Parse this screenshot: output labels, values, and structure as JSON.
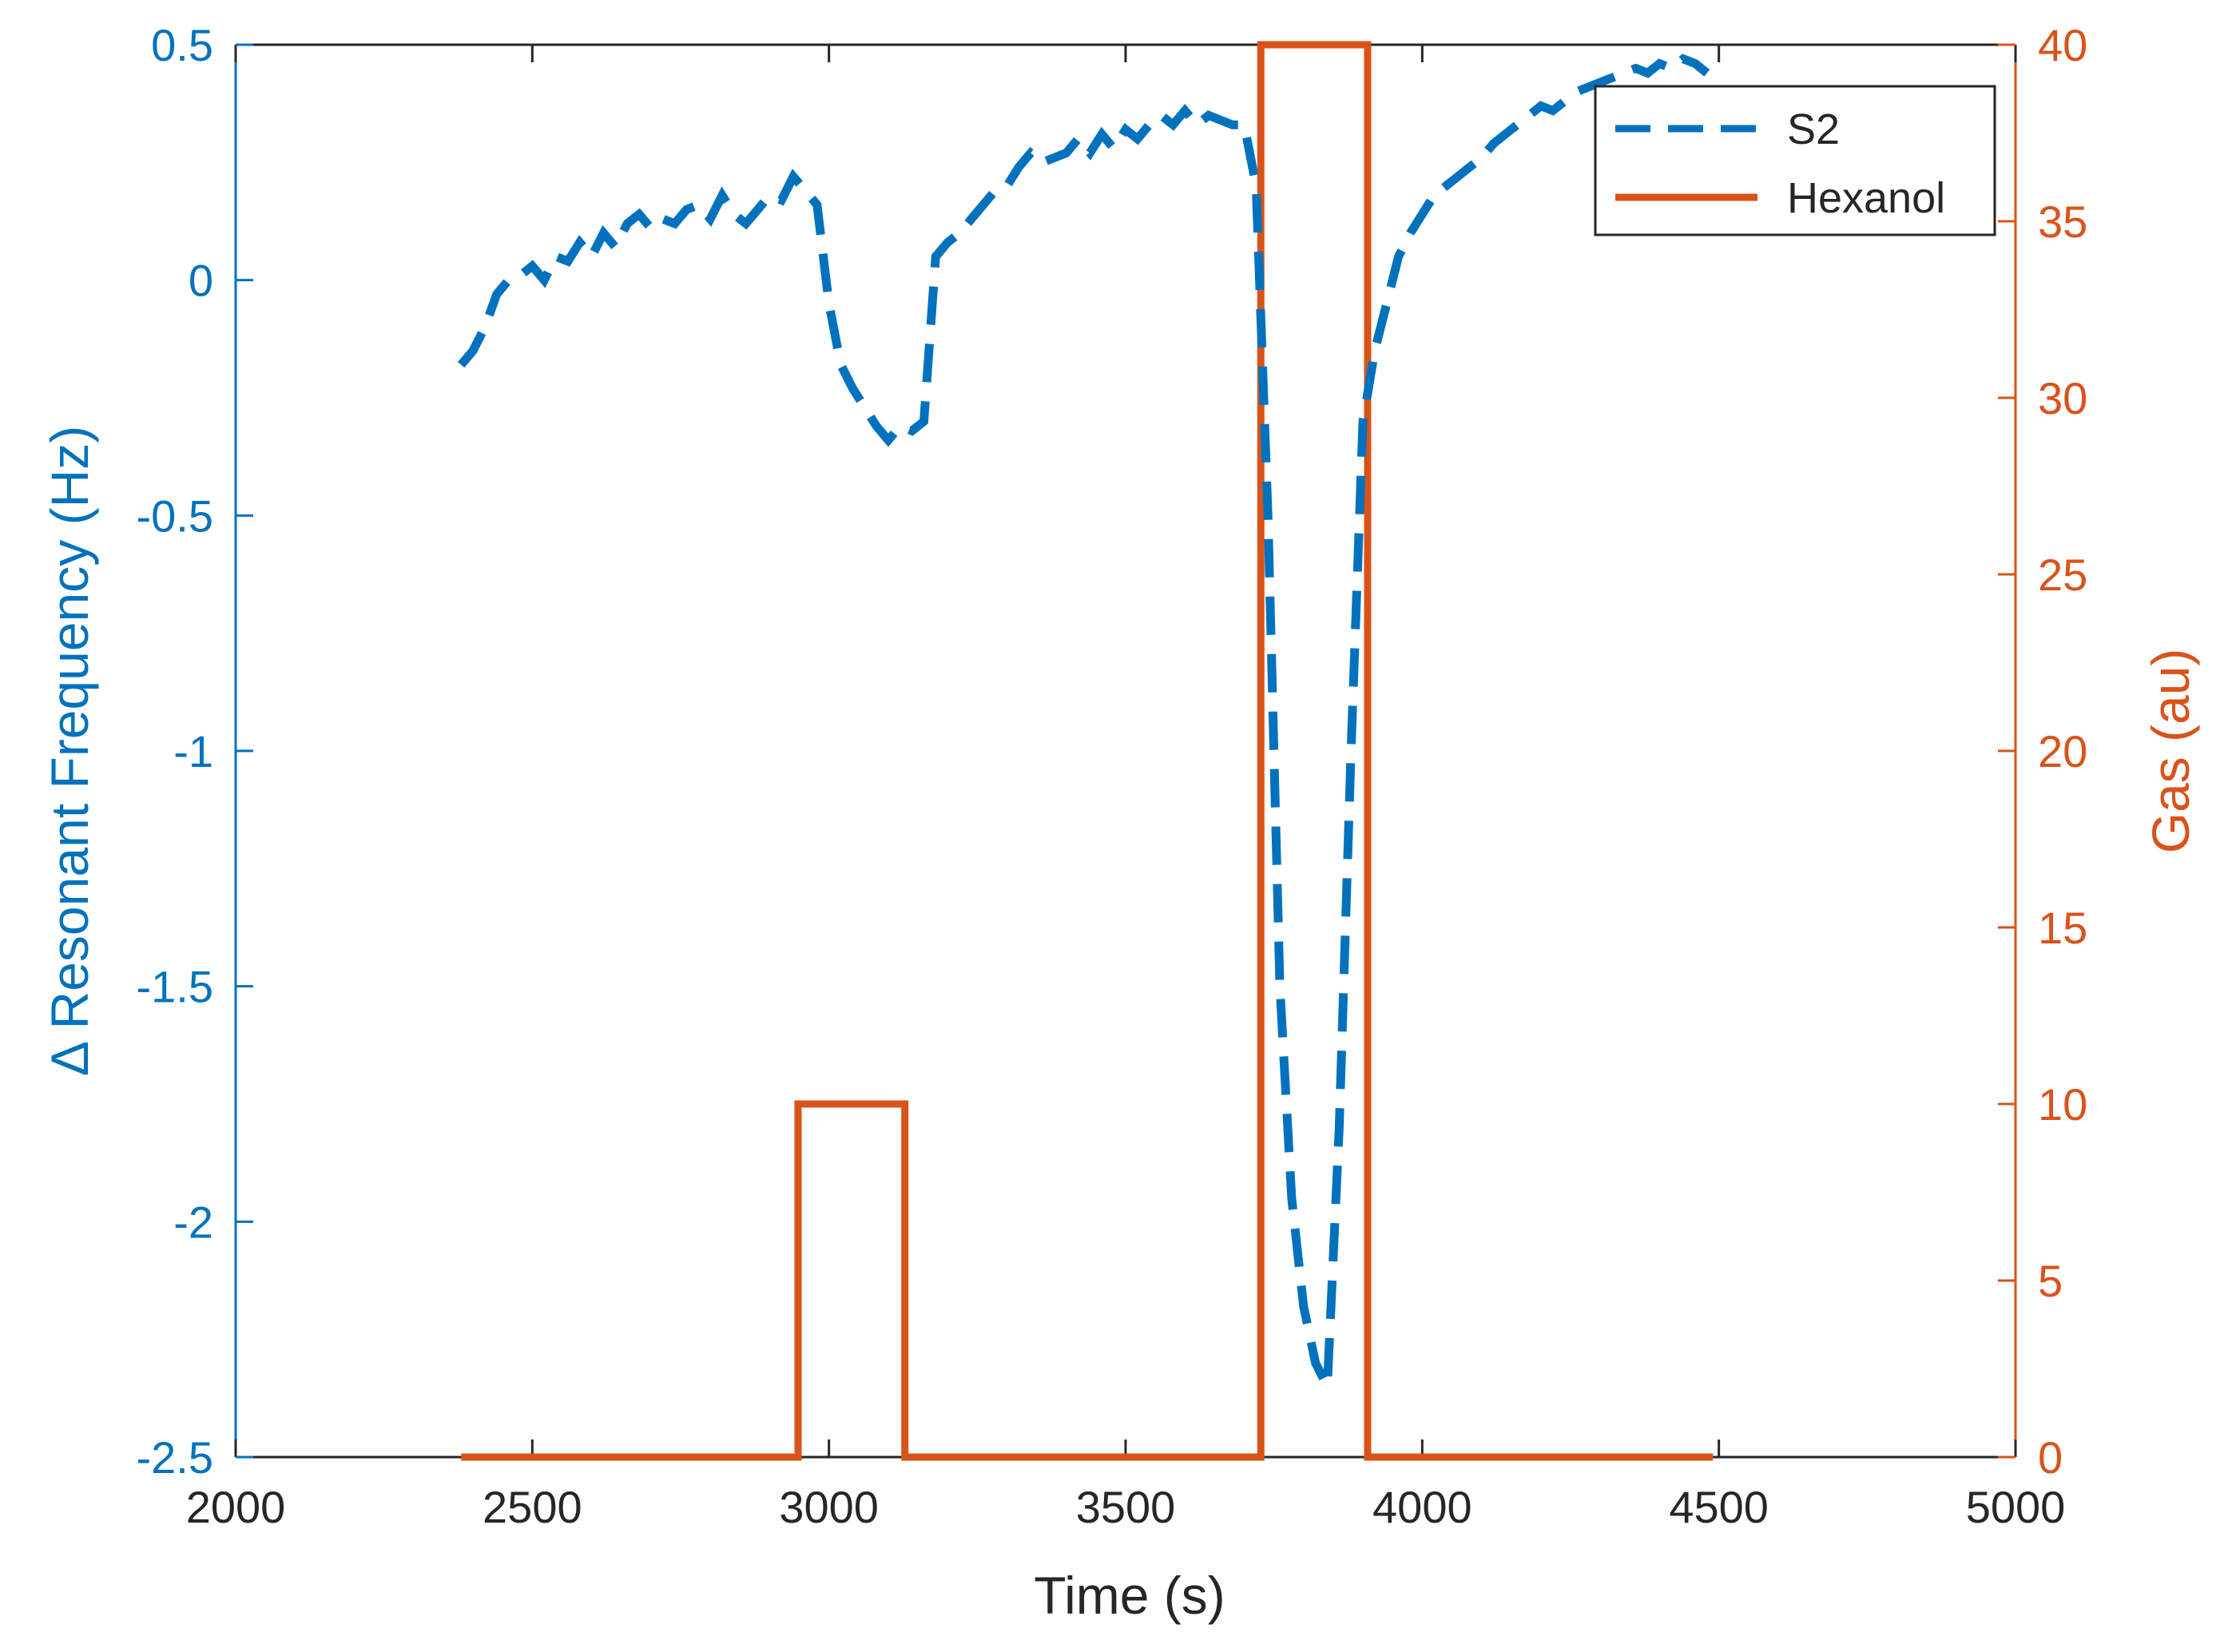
{
  "chart_data": {
    "type": "line",
    "xlabel": "Time (s)",
    "ylabel_left": "Δ Resonant Frequency (Hz)",
    "ylabel_right": "Gas (au)",
    "xlim": [
      2000,
      5000
    ],
    "ylim_left": [
      -2.5,
      0.5
    ],
    "ylim_right": [
      0,
      40
    ],
    "x_ticks": [
      "2000",
      "2500",
      "3000",
      "3500",
      "4000",
      "4500",
      "5000"
    ],
    "y_left_ticks": [
      "0.5",
      "0",
      "-0.5",
      "-1",
      "-1.5",
      "-2",
      "-2.5"
    ],
    "y_right_ticks": [
      "40",
      "35",
      "30",
      "25",
      "20",
      "15",
      "10",
      "5",
      "0"
    ],
    "legend_position": "top-right",
    "grid": false,
    "colors": {
      "left_axis": "#0072BD",
      "right_axis": "#D95319",
      "frame": "#262626"
    },
    "series": [
      {
        "name": "S2",
        "axis": "left",
        "style": "dashed",
        "color": "#0072BD",
        "x": [
          2380,
          2400,
          2420,
          2440,
          2460,
          2480,
          2500,
          2520,
          2540,
          2560,
          2580,
          2600,
          2620,
          2640,
          2660,
          2680,
          2700,
          2720,
          2740,
          2760,
          2780,
          2800,
          2820,
          2840,
          2860,
          2880,
          2900,
          2920,
          2940,
          2960,
          2980,
          3000,
          3020,
          3040,
          3060,
          3080,
          3100,
          3120,
          3140,
          3160,
          3180,
          3200,
          3220,
          3240,
          3260,
          3280,
          3300,
          3320,
          3340,
          3360,
          3380,
          3400,
          3420,
          3440,
          3460,
          3480,
          3500,
          3520,
          3540,
          3560,
          3580,
          3600,
          3620,
          3640,
          3660,
          3680,
          3700,
          3720,
          3740,
          3760,
          3780,
          3800,
          3820,
          3840,
          3860,
          3880,
          3900,
          3920,
          3940,
          3960,
          3980,
          4000,
          4020,
          4040,
          4060,
          4080,
          4100,
          4120,
          4140,
          4160,
          4180,
          4200,
          4220,
          4240,
          4260,
          4280,
          4300,
          4320,
          4340,
          4360,
          4380,
          4400,
          4420,
          4440,
          4460,
          4480
        ],
        "y": [
          -0.18,
          -0.15,
          -0.1,
          -0.03,
          0.0,
          0.01,
          0.03,
          0.0,
          0.05,
          0.04,
          0.08,
          0.05,
          0.1,
          0.07,
          0.12,
          0.14,
          0.11,
          0.13,
          0.12,
          0.15,
          0.16,
          0.13,
          0.18,
          0.14,
          0.12,
          0.15,
          0.18,
          0.17,
          0.22,
          0.19,
          0.16,
          -0.05,
          -0.18,
          -0.23,
          -0.27,
          -0.31,
          -0.34,
          -0.31,
          -0.32,
          -0.3,
          0.05,
          0.08,
          0.1,
          0.13,
          0.16,
          0.19,
          0.2,
          0.24,
          0.27,
          0.25,
          0.26,
          0.27,
          0.3,
          0.27,
          0.31,
          0.28,
          0.32,
          0.3,
          0.33,
          0.35,
          0.33,
          0.36,
          0.33,
          0.35,
          0.34,
          0.33,
          0.33,
          0.2,
          -0.5,
          -1.5,
          -1.95,
          -2.18,
          -2.3,
          -2.35,
          -1.8,
          -1.0,
          -0.3,
          -0.15,
          -0.05,
          0.05,
          0.1,
          0.14,
          0.18,
          0.2,
          0.22,
          0.24,
          0.26,
          0.29,
          0.31,
          0.33,
          0.35,
          0.37,
          0.36,
          0.38,
          0.4,
          0.41,
          0.42,
          0.43,
          0.44,
          0.45,
          0.44,
          0.46,
          0.45,
          0.47,
          0.46,
          0.44
        ]
      },
      {
        "name": "Hexanol",
        "axis": "right",
        "style": "solid",
        "color": "#D95319",
        "x": [
          2380,
          2948,
          2948,
          3128,
          3128,
          3728,
          3728,
          3908,
          3908,
          4490
        ],
        "y": [
          0,
          0,
          10,
          10,
          0,
          0,
          40,
          40,
          0,
          0
        ]
      }
    ]
  }
}
